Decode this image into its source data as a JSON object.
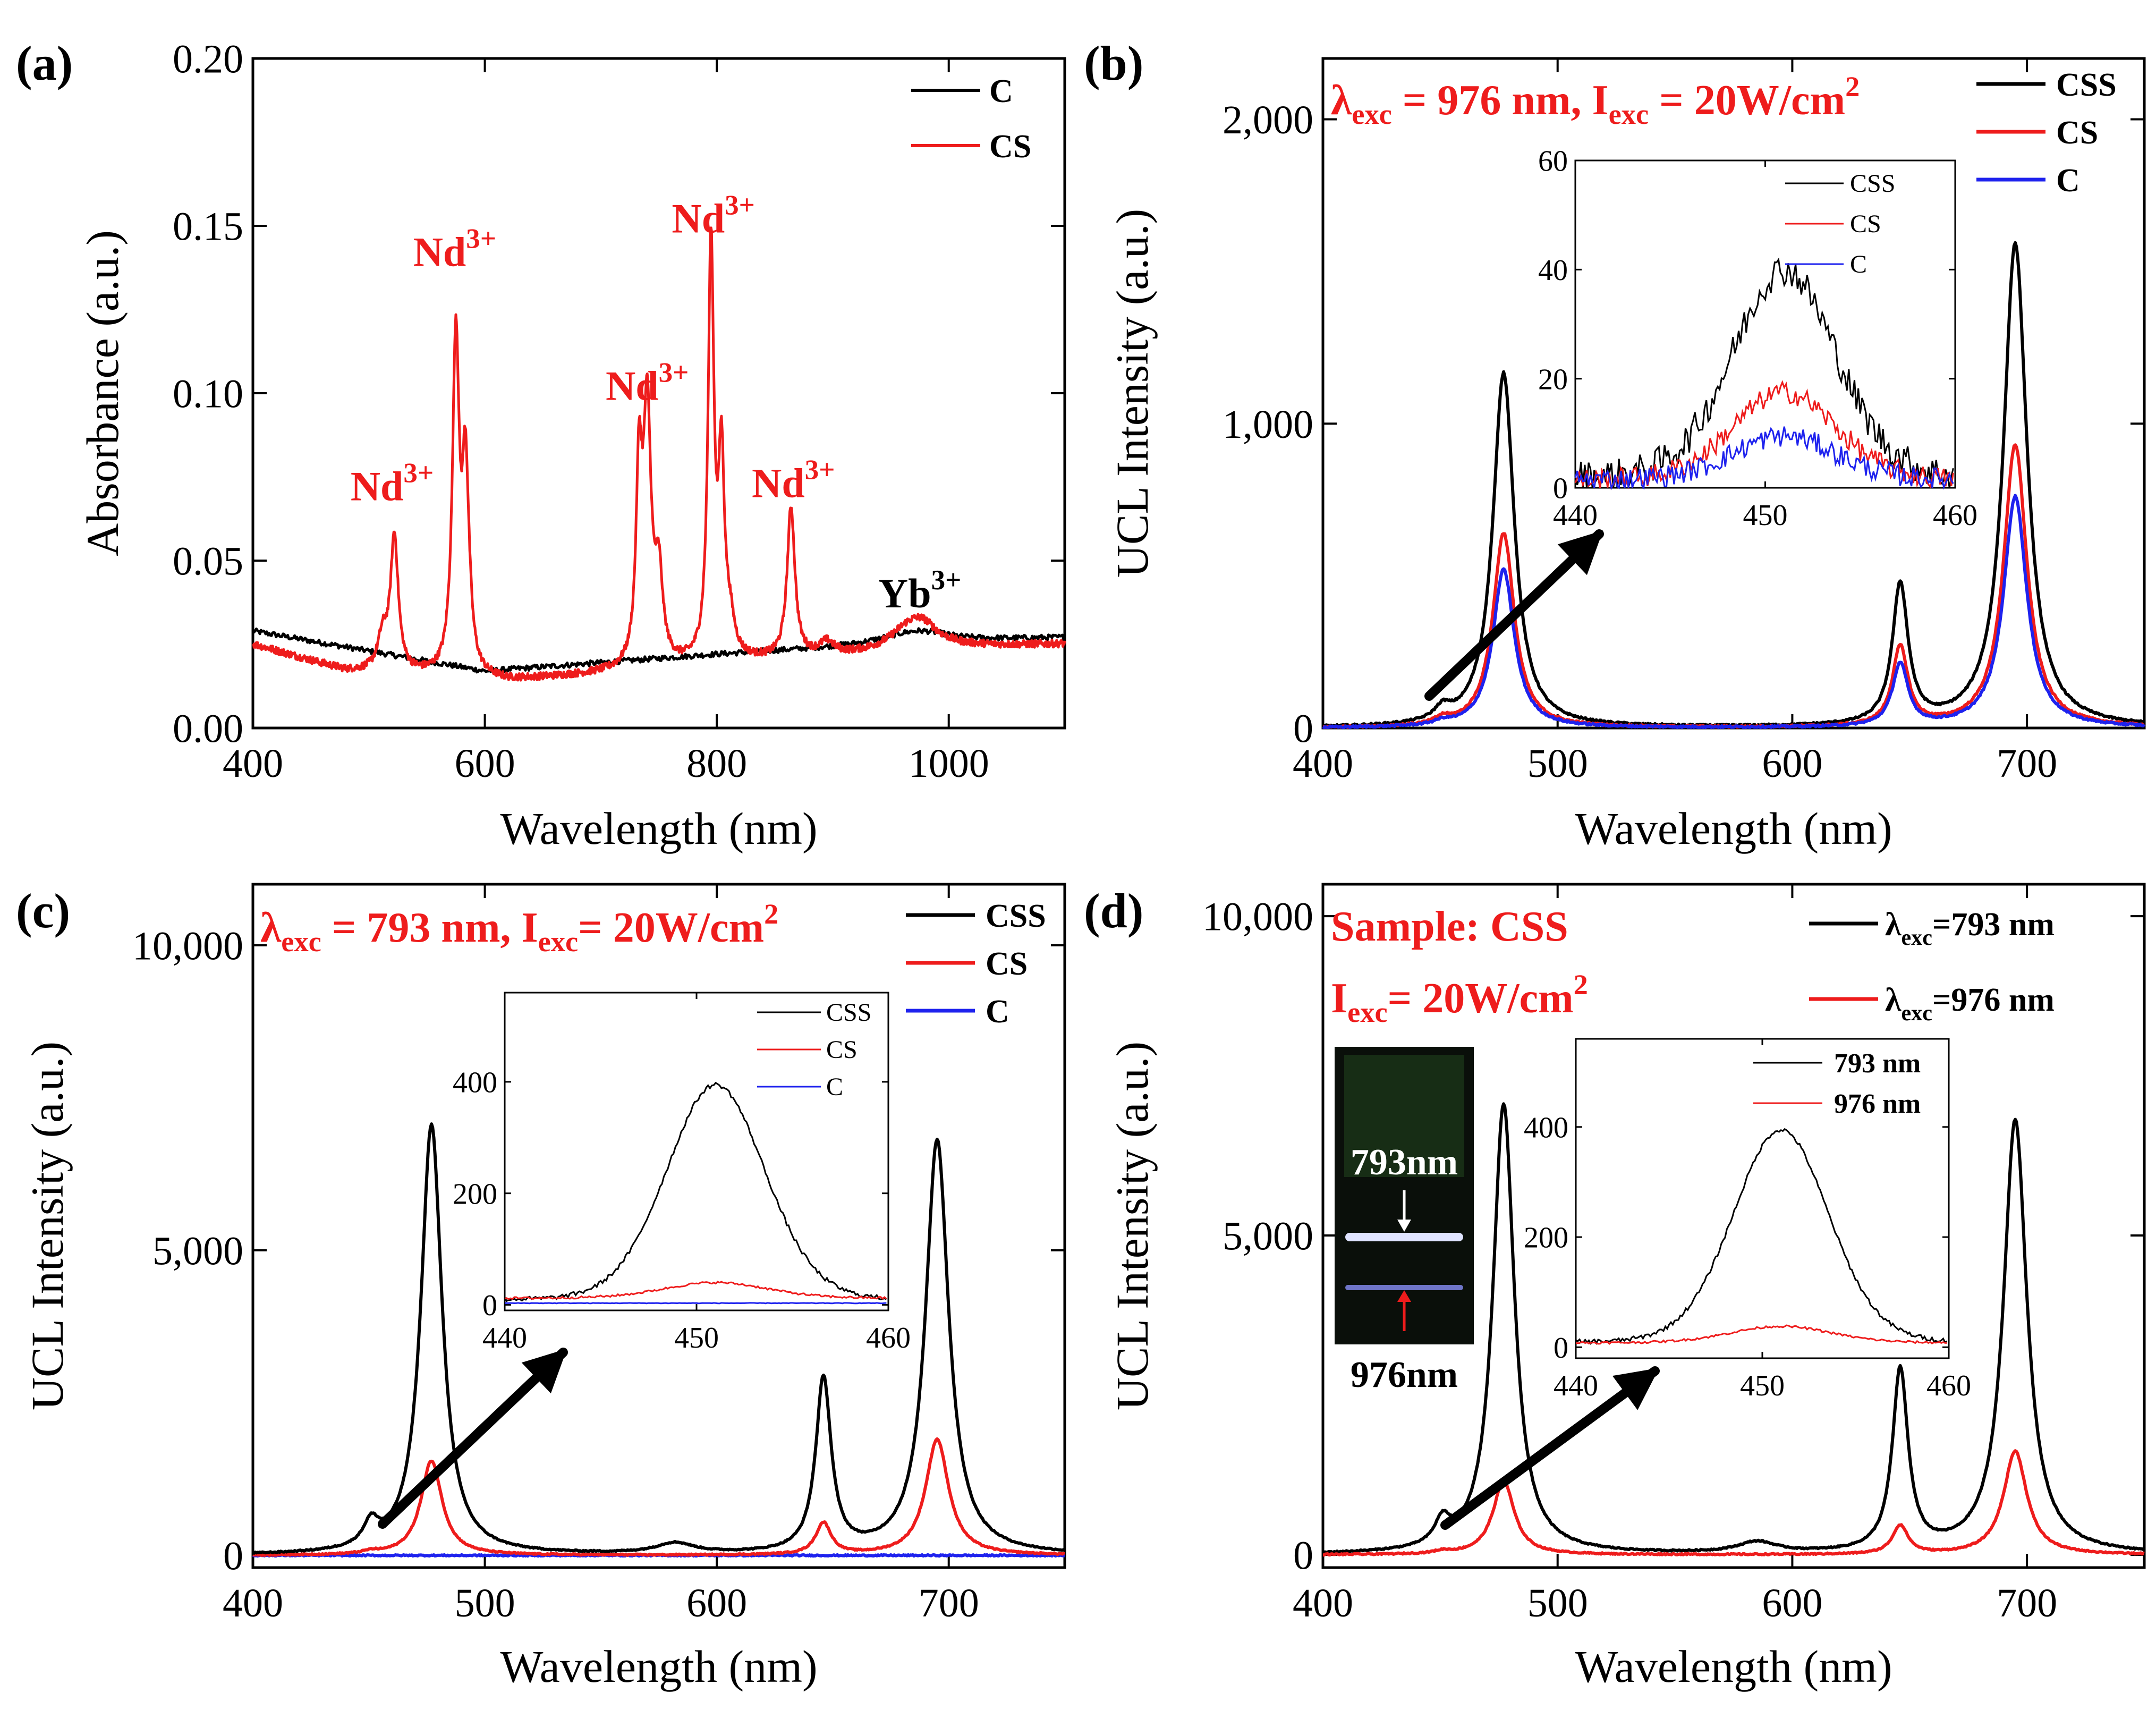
{
  "chart_data": [
    {
      "id": "a",
      "panel_label": "(a)",
      "type": "line",
      "xlabel": "Wavelength (nm)",
      "ylabel": "Absorbance (a.u.)",
      "xlim": [
        400,
        1100
      ],
      "ylim": [
        0,
        0.2
      ],
      "xticks": [
        400,
        600,
        800,
        1000
      ],
      "xtick_labels": [
        "400",
        "600",
        "800",
        "1000"
      ],
      "yticks": [
        0,
        0.05,
        0.1,
        0.15,
        0.2
      ],
      "ytick_labels": [
        "0.00",
        "0.05",
        "0.10",
        "0.15",
        "0.20"
      ],
      "legend": [
        {
          "name": "C",
          "color": "#000000"
        },
        {
          "name": "CS",
          "color": "#ee1c1c"
        }
      ],
      "series": [
        {
          "name": "C",
          "color": "#000000",
          "baseline": [
            [
              400,
              0.029
            ],
            [
              600,
              0.017
            ],
            [
              800,
              0.022
            ],
            [
              1000,
              0.026
            ],
            [
              1100,
              0.027
            ]
          ],
          "peaks": [
            [
              960,
              0.002,
              30
            ],
            [
              980,
              0.002,
              25
            ]
          ]
        },
        {
          "name": "CS",
          "color": "#ee1c1c",
          "baseline": [
            [
              400,
              0.025
            ],
            [
              480,
              0.017
            ],
            [
              620,
              0.014
            ],
            [
              700,
              0.016
            ],
            [
              800,
              0.019
            ],
            [
              900,
              0.021
            ],
            [
              1000,
              0.024
            ],
            [
              1100,
              0.025
            ]
          ],
          "peaks": [
            [
              522,
              0.04,
              4
            ],
            [
              512,
              0.01,
              5
            ],
            [
              575,
              0.1,
              3.5
            ],
            [
              583,
              0.045,
              3
            ],
            [
              585,
              0.018,
              4
            ],
            [
              733,
              0.055,
              3
            ],
            [
              740,
              0.075,
              4
            ],
            [
              750,
              0.025,
              4
            ],
            [
              795,
              0.124,
              3
            ],
            [
              804,
              0.057,
              3
            ],
            [
              811,
              0.01,
              5
            ],
            [
              864,
              0.045,
              4
            ],
            [
              895,
              0.004,
              8
            ],
            [
              965,
              0.006,
              20
            ],
            [
              978,
              0.005,
              15
            ]
          ]
        }
      ],
      "annotations": [
        {
          "text": "Nd",
          "sup": "3+",
          "x": 520,
          "y": 0.068
        },
        {
          "text": "Nd",
          "sup": "3+",
          "x": 574,
          "y": 0.138
        },
        {
          "text": "Nd",
          "sup": "3+",
          "x": 740,
          "y": 0.098
        },
        {
          "text": "Nd",
          "sup": "3+",
          "x": 797,
          "y": 0.148
        },
        {
          "text": "Nd",
          "sup": "3+",
          "x": 866,
          "y": 0.069
        },
        {
          "text": "Yb",
          "sup": "3+",
          "x": 975,
          "y": 0.036
        }
      ]
    },
    {
      "id": "b",
      "panel_label": "(b)",
      "type": "line",
      "condition": {
        "lambda": "λ",
        "lambda_sub": "exc",
        "lambda_value": " = 976 nm, ",
        "i": "I",
        "i_sub": "exc",
        "i_value": " = 20W/cm",
        "i_sup": "2"
      },
      "xlabel": "Wavelength (nm)",
      "ylabel": "UCL Intensity (a.u.)",
      "xlim": [
        400,
        750
      ],
      "ylim": [
        0,
        2200
      ],
      "xticks": [
        400,
        500,
        600,
        700
      ],
      "xtick_labels": [
        "400",
        "500",
        "600",
        "700"
      ],
      "yticks": [
        0,
        1000,
        2000
      ],
      "ytick_labels": [
        "0",
        "1,000",
        "2,000"
      ],
      "legend": [
        {
          "name": "CSS",
          "color": "#000000"
        },
        {
          "name": "CS",
          "color": "#ee1c1c"
        },
        {
          "name": "C",
          "color": "#1e22ee"
        }
      ],
      "series": [
        {
          "name": "CSS",
          "color": "#000000",
          "peaks": [
            [
              451,
              40,
              4
            ],
            [
              477,
              1165,
              5.5
            ],
            [
              646,
              460,
              4
            ],
            [
              695,
              1590,
              6
            ]
          ]
        },
        {
          "name": "CS",
          "color": "#ee1c1c",
          "peaks": [
            [
              451,
              20,
              4
            ],
            [
              477,
              640,
              5.5
            ],
            [
              646,
              260,
              4
            ],
            [
              695,
              930,
              6
            ]
          ]
        },
        {
          "name": "C",
          "color": "#1e22ee",
          "peaks": [
            [
              451,
              12,
              4
            ],
            [
              477,
              520,
              5.5
            ],
            [
              646,
              205,
              4
            ],
            [
              695,
              760,
              6
            ]
          ]
        }
      ],
      "inset": {
        "xlim": [
          440,
          460
        ],
        "ylim": [
          0,
          60
        ],
        "xticks": [
          440,
          450,
          460
        ],
        "xtick_labels": [
          "440",
          "450",
          "460"
        ],
        "yticks": [
          0,
          20,
          40,
          60
        ],
        "ytick_labels": [
          "0",
          "20",
          "40",
          "60"
        ],
        "legend": [
          {
            "name": "CSS",
            "color": "#000000"
          },
          {
            "name": "CS",
            "color": "#ee1c1c"
          },
          {
            "name": "C",
            "color": "#1e22ee"
          }
        ],
        "series": [
          {
            "name": "CSS",
            "color": "#000000",
            "peak_center": 451,
            "peak_height": 38,
            "peak_width": 3,
            "base": 2,
            "noise": 3
          },
          {
            "name": "CS",
            "color": "#ee1c1c",
            "peak_center": 451,
            "peak_height": 16,
            "peak_width": 3,
            "base": 1.5,
            "noise": 2
          },
          {
            "name": "C",
            "color": "#1e22ee",
            "peak_center": 451,
            "peak_height": 8,
            "peak_width": 3,
            "base": 1.5,
            "noise": 2
          }
        ]
      }
    },
    {
      "id": "c",
      "panel_label": "(c)",
      "type": "line",
      "condition": {
        "lambda": "λ",
        "lambda_sub": "exc",
        "lambda_value": " = 793 nm, ",
        "i": "I",
        "i_sub": "exc",
        "i_value": "= 20W/cm",
        "i_sup": "2"
      },
      "xlabel": "Wavelength (nm)",
      "ylabel": "UCL Intensity (a.u.)",
      "xlim": [
        400,
        750
      ],
      "ylim": [
        -200,
        11000
      ],
      "xticks": [
        400,
        500,
        600,
        700
      ],
      "xtick_labels": [
        "400",
        "500",
        "600",
        "700"
      ],
      "yticks": [
        0,
        5000,
        10000
      ],
      "ytick_labels": [
        "0",
        "5,000",
        "10,000"
      ],
      "legend": [
        {
          "name": "CSS",
          "color": "#000000"
        },
        {
          "name": "CS",
          "color": "#ee1c1c"
        },
        {
          "name": "C",
          "color": "#1e22ee"
        }
      ],
      "series": [
        {
          "name": "CSS",
          "color": "#000000",
          "peaks": [
            [
              451,
              380,
              4
            ],
            [
              477,
              7050,
              5.5
            ],
            [
              582,
              170,
              10
            ],
            [
              646,
              2850,
              4
            ],
            [
              695,
              6800,
              6
            ]
          ]
        },
        {
          "name": "CS",
          "color": "#ee1c1c",
          "peaks": [
            [
              451,
              40,
              4
            ],
            [
              477,
              1550,
              5.5
            ],
            [
              646,
              520,
              4
            ],
            [
              695,
              1900,
              6
            ]
          ]
        },
        {
          "name": "C",
          "color": "#1e22ee",
          "peaks": []
        }
      ],
      "inset": {
        "xlim": [
          440,
          460
        ],
        "ylim": [
          -10,
          560
        ],
        "xticks": [
          440,
          450,
          460
        ],
        "xtick_labels": [
          "440",
          "450",
          "460"
        ],
        "yticks": [
          0,
          200,
          400
        ],
        "ytick_labels": [
          "0",
          "200",
          "400"
        ],
        "legend": [
          {
            "name": "CSS",
            "color": "#000000"
          },
          {
            "name": "CS",
            "color": "#ee1c1c"
          },
          {
            "name": "C",
            "color": "#1e22ee"
          }
        ],
        "series": [
          {
            "name": "CSS",
            "color": "#000000",
            "peak_center": 451,
            "peak_height": 385,
            "peak_width": 2.8,
            "base": 10,
            "noise": 4
          },
          {
            "name": "CS",
            "color": "#ee1c1c",
            "peak_center": 451,
            "peak_height": 28,
            "peak_width": 3,
            "base": 12,
            "noise": 2
          },
          {
            "name": "C",
            "color": "#1e22ee",
            "peak_center": 451,
            "peak_height": 0,
            "peak_width": 3,
            "base": 3,
            "noise": 0.5
          }
        ]
      }
    },
    {
      "id": "d",
      "panel_label": "(d)",
      "type": "line",
      "sample_label": "Sample: CSS",
      "condition": {
        "i": "I",
        "i_sub": "exc",
        "i_value": "= 20W/cm",
        "i_sup": "2"
      },
      "xlabel": "Wavelength (nm)",
      "ylabel": "UCL Intensity (a.u.)",
      "xlim": [
        400,
        750
      ],
      "ylim": [
        -200,
        10500
      ],
      "xticks": [
        400,
        500,
        600,
        700
      ],
      "xtick_labels": [
        "400",
        "500",
        "600",
        "700"
      ],
      "yticks": [
        0,
        5000,
        10000
      ],
      "ytick_labels": [
        "0",
        "5,000",
        "10,000"
      ],
      "legend": [
        {
          "name": "λ",
          "sub": "exc",
          "value": "=793 nm",
          "color": "#000000"
        },
        {
          "name": "λ",
          "sub": "exc",
          "value": "=976 nm",
          "color": "#ee1c1c"
        }
      ],
      "series": [
        {
          "name": "793 nm",
          "color": "#000000",
          "peaks": [
            [
              451,
              380,
              4
            ],
            [
              477,
              7050,
              5.5
            ],
            [
              585,
              170,
              10
            ],
            [
              646,
              2850,
              4
            ],
            [
              695,
              6800,
              6
            ]
          ]
        },
        {
          "name": "976 nm",
          "color": "#ee1c1c",
          "peaks": [
            [
              451,
              40,
              4
            ],
            [
              477,
              1150,
              5.5
            ],
            [
              646,
              450,
              4
            ],
            [
              695,
              1620,
              6
            ]
          ]
        }
      ],
      "photo": {
        "label_top": "793nm",
        "label_bottom": "976nm"
      },
      "inset": {
        "xlim": [
          440,
          460
        ],
        "ylim": [
          -20,
          560
        ],
        "xticks": [
          440,
          450,
          460
        ],
        "xtick_labels": [
          "440",
          "450",
          "460"
        ],
        "yticks": [
          0,
          200,
          400
        ],
        "ytick_labels": [
          "0",
          "200",
          "400"
        ],
        "legend": [
          {
            "name": "793 nm",
            "color": "#000000"
          },
          {
            "name": "976 nm",
            "color": "#ee1c1c"
          }
        ],
        "series": [
          {
            "name": "793 nm",
            "color": "#000000",
            "peak_center": 451,
            "peak_height": 385,
            "peak_width": 2.8,
            "base": 10,
            "noise": 4
          },
          {
            "name": "976 nm",
            "color": "#ee1c1c",
            "peak_center": 451,
            "peak_height": 30,
            "peak_width": 3,
            "base": 8,
            "noise": 2
          }
        ]
      }
    }
  ]
}
